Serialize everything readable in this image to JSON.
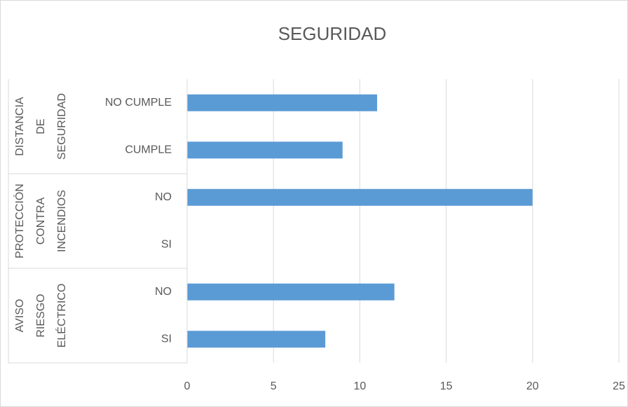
{
  "chart_data": {
    "type": "bar",
    "orientation": "horizontal",
    "title": "SEGURIDAD",
    "groups": [
      {
        "name": [
          "DISTANCIA",
          "DE",
          "SEGURIDAD"
        ],
        "categories": [
          "NO CUMPLE",
          "CUMPLE"
        ],
        "values": [
          11,
          9
        ]
      },
      {
        "name": [
          "PROTECCIÓN",
          "CONTRA",
          "INCENDIOS"
        ],
        "categories": [
          "NO",
          "SI"
        ],
        "values": [
          20,
          0
        ]
      },
      {
        "name": [
          "AVISO",
          "RIESGO",
          "ELÉCTRICO"
        ],
        "categories": [
          "NO",
          "SI"
        ],
        "values": [
          12,
          8
        ]
      }
    ],
    "color": "#5b9bd5",
    "xlim": [
      0,
      25
    ],
    "xticks": [
      0,
      5,
      10,
      15,
      20,
      25
    ],
    "grid": true
  }
}
